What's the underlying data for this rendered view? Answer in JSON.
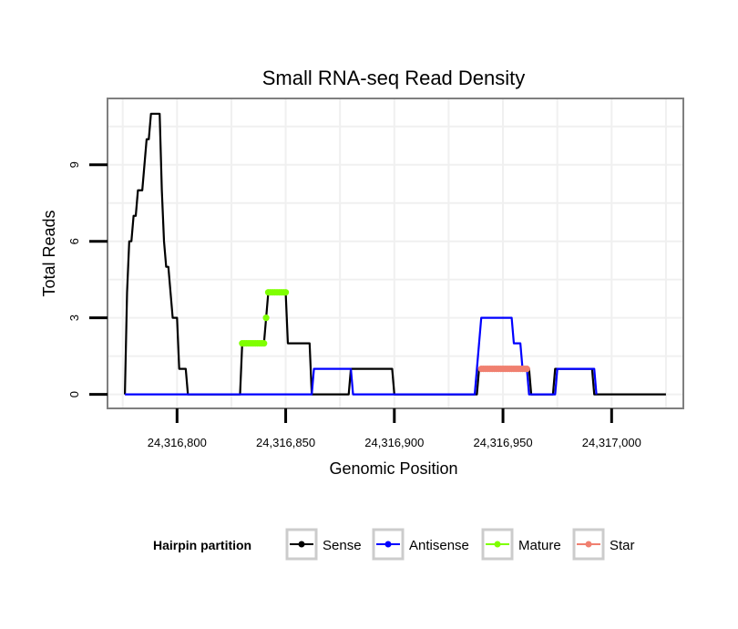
{
  "chart_data": {
    "type": "line",
    "title": "Small RNA-seq Read Density",
    "xlabel": "Genomic Position",
    "ylabel": "Total Reads",
    "xlim": [
      24316768,
      24317033
    ],
    "ylim": [
      -0.55,
      11.6
    ],
    "x_ticks": [
      24316800,
      24316850,
      24316900,
      24316950,
      24317000
    ],
    "x_tick_labels": [
      "24,316,800",
      "24,316,850",
      "24,316,900",
      "24,316,950",
      "24,317,000"
    ],
    "y_ticks": [
      0,
      3,
      6,
      9
    ],
    "y_tick_labels": [
      "0",
      "3",
      "6",
      "9"
    ],
    "grid": true,
    "legend": {
      "title": "Hairpin partition",
      "position": "bottom",
      "entries": [
        "Sense",
        "Antisense",
        "Mature",
        "Star"
      ]
    },
    "series": [
      {
        "name": "Sense",
        "color": "#000000",
        "kind": "line",
        "points": [
          [
            24316776,
            0
          ],
          [
            24316777,
            4
          ],
          [
            24316778,
            6
          ],
          [
            24316779,
            6
          ],
          [
            24316780,
            7
          ],
          [
            24316781,
            7
          ],
          [
            24316782,
            8
          ],
          [
            24316783,
            8
          ],
          [
            24316784,
            8
          ],
          [
            24316785,
            9
          ],
          [
            24316786,
            10
          ],
          [
            24316787,
            10
          ],
          [
            24316788,
            11
          ],
          [
            24316792,
            11
          ],
          [
            24316793,
            8
          ],
          [
            24316794,
            6
          ],
          [
            24316795,
            5
          ],
          [
            24316796,
            5
          ],
          [
            24316797,
            4
          ],
          [
            24316798,
            3
          ],
          [
            24316800,
            3
          ],
          [
            24316801,
            1
          ],
          [
            24316804,
            1
          ],
          [
            24316805,
            0
          ],
          [
            24316829,
            0
          ],
          [
            24316830,
            2
          ],
          [
            24316840,
            2
          ],
          [
            24316841,
            3
          ],
          [
            24316842,
            4
          ],
          [
            24316850,
            4
          ],
          [
            24316851,
            2
          ],
          [
            24316861,
            2
          ],
          [
            24316862,
            0
          ],
          [
            24316879,
            0
          ],
          [
            24316880,
            1
          ],
          [
            24316899,
            1
          ],
          [
            24316900,
            0
          ],
          [
            24316938,
            0
          ],
          [
            24316939,
            1
          ],
          [
            24316962,
            1
          ],
          [
            24316963,
            0
          ],
          [
            24316973,
            0
          ],
          [
            24316974,
            1
          ],
          [
            24316991,
            1
          ],
          [
            24316992,
            0
          ],
          [
            24317025,
            0
          ]
        ]
      },
      {
        "name": "Antisense",
        "color": "#0000FF",
        "kind": "line",
        "points": [
          [
            24316776,
            0
          ],
          [
            24316862,
            0
          ],
          [
            24316863,
            1
          ],
          [
            24316880,
            1
          ],
          [
            24316881,
            0
          ],
          [
            24316937,
            0
          ],
          [
            24316938,
            1
          ],
          [
            24316939,
            2
          ],
          [
            24316940,
            3
          ],
          [
            24316954,
            3
          ],
          [
            24316955,
            2
          ],
          [
            24316958,
            2
          ],
          [
            24316959,
            1
          ],
          [
            24316961,
            1
          ],
          [
            24316962,
            0
          ],
          [
            24316974,
            0
          ],
          [
            24316975,
            1
          ],
          [
            24316992,
            1
          ],
          [
            24316993,
            0
          ]
        ]
      },
      {
        "name": "Mature",
        "color": "#7FFF00",
        "kind": "points",
        "points": [
          [
            24316830,
            2
          ],
          [
            24316831,
            2
          ],
          [
            24316832,
            2
          ],
          [
            24316833,
            2
          ],
          [
            24316834,
            2
          ],
          [
            24316835,
            2
          ],
          [
            24316836,
            2
          ],
          [
            24316837,
            2
          ],
          [
            24316838,
            2
          ],
          [
            24316839,
            2
          ],
          [
            24316840,
            2
          ],
          [
            24316841,
            3
          ],
          [
            24316842,
            4
          ],
          [
            24316843,
            4
          ],
          [
            24316844,
            4
          ],
          [
            24316845,
            4
          ],
          [
            24316846,
            4
          ],
          [
            24316847,
            4
          ],
          [
            24316848,
            4
          ],
          [
            24316849,
            4
          ],
          [
            24316850,
            4
          ]
        ]
      },
      {
        "name": "Star",
        "color": "#F08070",
        "kind": "points",
        "points": [
          [
            24316940,
            1
          ],
          [
            24316941,
            1
          ],
          [
            24316942,
            1
          ],
          [
            24316943,
            1
          ],
          [
            24316944,
            1
          ],
          [
            24316945,
            1
          ],
          [
            24316946,
            1
          ],
          [
            24316947,
            1
          ],
          [
            24316948,
            1
          ],
          [
            24316949,
            1
          ],
          [
            24316950,
            1
          ],
          [
            24316951,
            1
          ],
          [
            24316952,
            1
          ],
          [
            24316953,
            1
          ],
          [
            24316954,
            1
          ],
          [
            24316955,
            1
          ],
          [
            24316956,
            1
          ],
          [
            24316957,
            1
          ],
          [
            24316958,
            1
          ],
          [
            24316959,
            1
          ],
          [
            24316960,
            1
          ],
          [
            24316961,
            1
          ]
        ]
      }
    ]
  }
}
